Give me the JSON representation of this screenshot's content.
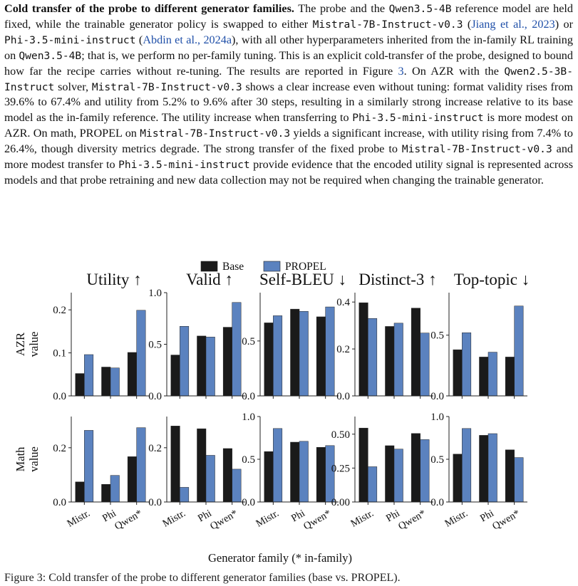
{
  "paragraph": {
    "heading": "Cold transfer of the probe to different generator families.",
    "parts": [
      {
        "t": "text",
        "v": " The probe and the "
      },
      {
        "t": "mono",
        "v": "Qwen3.5-4B"
      },
      {
        "t": "text",
        "v": " reference model are held fixed, while the trainable generator policy is swapped to either "
      },
      {
        "t": "mono",
        "v": "Mistral-7B-Instruct-v0.3"
      },
      {
        "t": "text",
        "v": " ("
      },
      {
        "t": "cite",
        "v": "Jiang et al., 2023"
      },
      {
        "t": "text",
        "v": ") or "
      },
      {
        "t": "mono",
        "v": "Phi-3.5-mini-instruct"
      },
      {
        "t": "text",
        "v": " ("
      },
      {
        "t": "cite",
        "v": "Abdin et al., 2024a"
      },
      {
        "t": "text",
        "v": "), with all other hyperparameters inherited from the in-family RL training on "
      },
      {
        "t": "mono",
        "v": "Qwen3.5-4B"
      },
      {
        "t": "text",
        "v": "; that is, we perform no per-family tuning. This is an explicit cold-transfer of the probe, designed to bound how far the recipe carries without re-tuning. The results are reported in Figure "
      },
      {
        "t": "cite",
        "v": "3"
      },
      {
        "t": "text",
        "v": ". On AZR with the "
      },
      {
        "t": "mono",
        "v": "Qwen2.5-3B-Instruct"
      },
      {
        "t": "text",
        "v": " solver, "
      },
      {
        "t": "mono",
        "v": "Mistral-7B-Instruct-v0.3"
      },
      {
        "t": "text",
        "v": " shows a clear increase even without tuning: format validity rises from 39.6% to 67.4% and utility from 5.2% to 9.6% after 30 steps, resulting in a similarly strong increase relative to its base model as the in-family reference. The utility increase when transferring to "
      },
      {
        "t": "mono",
        "v": "Phi-3.5-mini-instruct"
      },
      {
        "t": "text",
        "v": " is more modest on AZR. On math, PROPEL on "
      },
      {
        "t": "mono",
        "v": "Mistral-7B-Instruct-v0.3"
      },
      {
        "t": "text",
        "v": " yields a significant increase, with utility rising from 7.4% to 26.4%, though diversity metrics degrade. The strong transfer of the fixed probe to "
      },
      {
        "t": "mono",
        "v": "Mistral-7B-Instruct-v0.3"
      },
      {
        "t": "text",
        "v": " and more modest transfer to "
      },
      {
        "t": "mono",
        "v": "Phi-3.5-mini-instruct"
      },
      {
        "t": "text",
        "v": " provide evidence that the encoded utility signal is represented across models and that probe retraining and new data collection may not be required when changing the trainable generator."
      }
    ]
  },
  "chart_data": {
    "type": "bar",
    "legend": {
      "placement": "top-center",
      "entries": [
        "Base",
        "PROPEL"
      ]
    },
    "colors": {
      "Base": "#1a1a1a",
      "PROPEL": "#5b82bf"
    },
    "categories": [
      "Mistr.",
      "Phi",
      "Qwen*"
    ],
    "xlabel": "Generator family (* in-family)",
    "row_labels": [
      "AZR\nvalue",
      "Math\nvalue"
    ],
    "column_titles": [
      "Utility ↑",
      "Valid ↑",
      "Self-BLEU ↓",
      "Distinct-3 ↑",
      "Top-topic ↓"
    ],
    "panels": [
      {
        "row": "AZR",
        "metric": "Utility ↑",
        "ylim": [
          0,
          0.24
        ],
        "yticks": [
          "0.0",
          "0.1",
          "0.2"
        ],
        "tick_values": [
          0,
          0.1,
          0.2
        ],
        "series": [
          {
            "name": "Base",
            "values": [
              0.052,
              0.067,
              0.101
            ]
          },
          {
            "name": "PROPEL",
            "values": [
              0.096,
              0.065,
              0.199
            ]
          }
        ]
      },
      {
        "row": "AZR",
        "metric": "Valid ↑",
        "ylim": [
          0,
          1.0
        ],
        "yticks": [
          "0.0",
          "0.5",
          "1.0"
        ],
        "tick_values": [
          0,
          0.5,
          1.0
        ],
        "series": [
          {
            "name": "Base",
            "values": [
              0.396,
              0.58,
              0.665
            ]
          },
          {
            "name": "PROPEL",
            "values": [
              0.674,
              0.57,
              0.905
            ]
          }
        ]
      },
      {
        "row": "AZR",
        "metric": "Self-BLEU ↓",
        "ylim": [
          0,
          0.94
        ],
        "yticks": [
          "0.0",
          "0.5"
        ],
        "tick_values": [
          0,
          0.5
        ],
        "series": [
          {
            "name": "Base",
            "values": [
              0.665,
              0.79,
              0.72
            ]
          },
          {
            "name": "PROPEL",
            "values": [
              0.73,
              0.77,
              0.81
            ]
          }
        ]
      },
      {
        "row": "AZR",
        "metric": "Distinct-3 ↑",
        "ylim": [
          0,
          0.44
        ],
        "yticks": [
          "0.0",
          "0.2",
          "0.4"
        ],
        "tick_values": [
          0,
          0.2,
          0.4
        ],
        "series": [
          {
            "name": "Base",
            "values": [
              0.397,
              0.296,
              0.374
            ]
          },
          {
            "name": "PROPEL",
            "values": [
              0.33,
              0.31,
              0.268
            ]
          }
        ]
      },
      {
        "row": "AZR",
        "metric": "Top-topic ↓",
        "ylim": [
          0,
          0.85
        ],
        "yticks": [
          "0.0",
          "0.5"
        ],
        "tick_values": [
          0,
          0.5
        ],
        "series": [
          {
            "name": "Base",
            "values": [
              0.38,
              0.32,
              0.32
            ]
          },
          {
            "name": "PROPEL",
            "values": [
              0.52,
              0.36,
              0.74
            ]
          }
        ]
      },
      {
        "row": "Math",
        "metric": "Utility ↑",
        "ylim": [
          0,
          0.315
        ],
        "yticks": [
          "0.0",
          "0.2"
        ],
        "tick_values": [
          0,
          0.2
        ],
        "series": [
          {
            "name": "Base",
            "values": [
              0.074,
              0.065,
              0.167
            ]
          },
          {
            "name": "PROPEL",
            "values": [
              0.264,
              0.098,
              0.274
            ]
          }
        ]
      },
      {
        "row": "Math",
        "metric": "Valid ↑",
        "ylim": [
          0,
          0.315
        ],
        "yticks": [
          "0.0",
          "0.2"
        ],
        "tick_values": [
          0,
          0.2
        ],
        "series": [
          {
            "name": "Base",
            "values": [
              0.28,
              0.27,
              0.197
            ]
          },
          {
            "name": "PROPEL",
            "values": [
              0.054,
              0.172,
              0.121
            ]
          }
        ]
      },
      {
        "row": "Math",
        "metric": "Self-BLEU ↓",
        "ylim": [
          0,
          1.0
        ],
        "yticks": [
          "0.0",
          "0.5",
          "1.0"
        ],
        "tick_values": [
          0,
          0.5,
          1.0
        ],
        "series": [
          {
            "name": "Base",
            "values": [
              0.59,
              0.7,
              0.64
            ]
          },
          {
            "name": "PROPEL",
            "values": [
              0.86,
              0.71,
              0.66
            ]
          }
        ]
      },
      {
        "row": "Math",
        "metric": "Distinct-3 ↑",
        "ylim": [
          0,
          0.63
        ],
        "yticks": [
          "0.00",
          "0.25",
          "0.50"
        ],
        "tick_values": [
          0,
          0.25,
          0.5
        ],
        "series": [
          {
            "name": "Base",
            "values": [
              0.545,
              0.415,
              0.505
            ]
          },
          {
            "name": "PROPEL",
            "values": [
              0.26,
              0.39,
              0.46
            ]
          }
        ]
      },
      {
        "row": "Math",
        "metric": "Top-topic ↓",
        "ylim": [
          0,
          1.0
        ],
        "yticks": [
          "0.0",
          "0.5",
          "1.0"
        ],
        "tick_values": [
          0,
          0.5,
          1.0
        ],
        "series": [
          {
            "name": "Base",
            "values": [
              0.56,
              0.78,
              0.61
            ]
          },
          {
            "name": "PROPEL",
            "values": [
              0.86,
              0.8,
              0.52
            ]
          }
        ]
      }
    ]
  },
  "bottom_text": "Figure 3: Cold transfer of the probe to different generator families (base vs. PROPEL)."
}
